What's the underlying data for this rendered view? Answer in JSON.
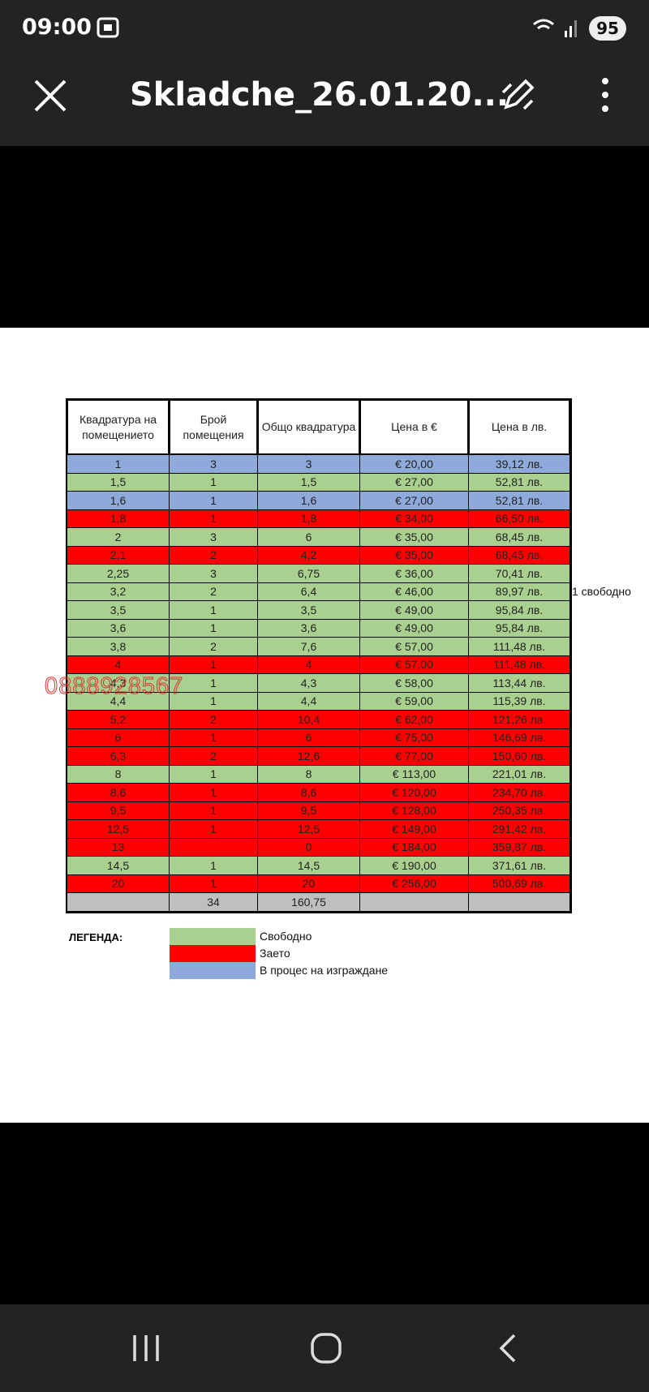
{
  "status_bar": {
    "time": "09:00",
    "battery": "95"
  },
  "app_bar": {
    "title": "Skladche_26.01.20..."
  },
  "table": {
    "headers": [
      "Квадратура на помещението",
      "Брой помещения",
      "Общо квадратура",
      "Цена в €",
      "Цена в лв."
    ],
    "rows": [
      {
        "color": "#8eaadb",
        "cells": [
          "1",
          "3",
          "3",
          "€ 20,00",
          "39,12 лв."
        ]
      },
      {
        "color": "#a9d08e",
        "cells": [
          "1,5",
          "1",
          "1,5",
          "€ 27,00",
          "52,81 лв."
        ]
      },
      {
        "color": "#8eaadb",
        "cells": [
          "1,6",
          "1",
          "1,6",
          "€ 27,00",
          "52,81 лв."
        ]
      },
      {
        "color": "#ff0000",
        "cells": [
          "1,8",
          "1",
          "1,8",
          "€ 34,00",
          "66,50 лв."
        ]
      },
      {
        "color": "#a9d08e",
        "cells": [
          "2",
          "3",
          "6",
          "€ 35,00",
          "68,45 лв."
        ]
      },
      {
        "color": "#ff0000",
        "cells": [
          "2,1",
          "2",
          "4,2",
          "€ 35,00",
          "68,45 лв."
        ]
      },
      {
        "color": "#a9d08e",
        "cells": [
          "2,25",
          "3",
          "6,75",
          "€ 36,00",
          "70,41 лв."
        ]
      },
      {
        "color": "#a9d08e",
        "cells": [
          "3,2",
          "2",
          "6,4",
          "€ 46,00",
          "89,97 лв."
        ],
        "note": "1 свободно"
      },
      {
        "color": "#a9d08e",
        "cells": [
          "3,5",
          "1",
          "3,5",
          "€ 49,00",
          "95,84 лв."
        ]
      },
      {
        "color": "#a9d08e",
        "cells": [
          "3,6",
          "1",
          "3,6",
          "€ 49,00",
          "95,84 лв."
        ]
      },
      {
        "color": "#a9d08e",
        "cells": [
          "3,8",
          "2",
          "7,6",
          "€ 57,00",
          "111,48 лв."
        ]
      },
      {
        "color": "#ff0000",
        "cells": [
          "4",
          "1",
          "4",
          "€ 57,00",
          "111,48 лв."
        ]
      },
      {
        "color": "#a9d08e",
        "cells": [
          "4,3",
          "1",
          "4,3",
          "€ 58,00",
          "113,44 лв."
        ]
      },
      {
        "color": "#a9d08e",
        "cells": [
          "4,4",
          "1",
          "4,4",
          "€ 59,00",
          "115,39 лв."
        ]
      },
      {
        "color": "#ff0000",
        "cells": [
          "5,2",
          "2",
          "10,4",
          "€ 62,00",
          "121,26 лв."
        ]
      },
      {
        "color": "#ff0000",
        "cells": [
          "6",
          "1",
          "6",
          "€ 75,00",
          "146,69 лв."
        ]
      },
      {
        "color": "#ff0000",
        "cells": [
          "6,3",
          "2",
          "12,6",
          "€ 77,00",
          "150,60 лв."
        ]
      },
      {
        "color": "#a9d08e",
        "cells": [
          "8",
          "1",
          "8",
          "€ 113,00",
          "221,01 лв."
        ]
      },
      {
        "color": "#ff0000",
        "cells": [
          "8,6",
          "1",
          "8,6",
          "€ 120,00",
          "234,70 лв."
        ]
      },
      {
        "color": "#ff0000",
        "cells": [
          "9,5",
          "1",
          "9,5",
          "€ 128,00",
          "250,35 лв."
        ]
      },
      {
        "color": "#ff0000",
        "cells": [
          "12,5",
          "1",
          "12,5",
          "€ 149,00",
          "291,42 лв."
        ]
      },
      {
        "color": "#ff0000",
        "cells": [
          "13",
          null,
          "0",
          "€ 184,00",
          "359,87 лв."
        ]
      },
      {
        "color": "#a9d08e",
        "cells": [
          "14,5",
          "1",
          "14,5",
          "€ 190,00",
          "371,61 лв."
        ]
      },
      {
        "color": "#ff0000",
        "cells": [
          "20",
          "1",
          "20",
          "€ 256,00",
          "500,69 лв."
        ]
      }
    ],
    "total": {
      "color": "#bfbfbf",
      "cells": [
        null,
        "34",
        "160,75",
        null,
        null
      ]
    }
  },
  "legend": {
    "title": "ЛЕГЕНДА:",
    "items": [
      {
        "label": "Свободно",
        "color": "#a9d08e"
      },
      {
        "label": "Заето",
        "color": "#ff0000"
      },
      {
        "label": "В процес на изграждане",
        "color": "#8eaadb"
      }
    ]
  },
  "watermark": "0888928567"
}
